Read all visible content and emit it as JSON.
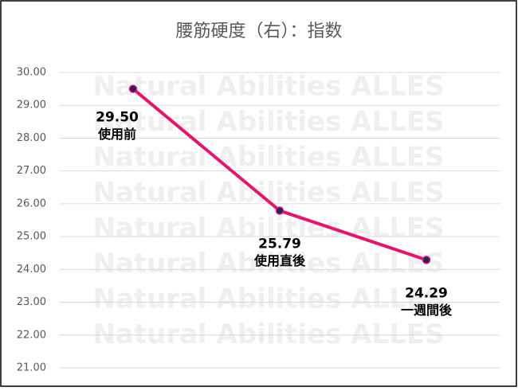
{
  "chart_data": {
    "type": "line",
    "title": "腰筋硬度（右）：指数",
    "watermark": "Natural Abilities ALLES",
    "categories": [
      "使用前",
      "使用直後",
      "一週間後"
    ],
    "series": [
      {
        "name": "腰筋硬度（右）",
        "color": "#e8136e",
        "values": [
          29.5,
          25.79,
          24.29
        ],
        "value_labels": [
          "29.50",
          "25.79",
          "24.29"
        ]
      }
    ],
    "ylim": [
      21,
      30
    ],
    "yticks": [
      {
        "value": 21,
        "label": "21.00"
      },
      {
        "value": 22,
        "label": "22.00"
      },
      {
        "value": 23,
        "label": "23.00"
      },
      {
        "value": 24,
        "label": "24.00"
      },
      {
        "value": 25,
        "label": "25.00"
      },
      {
        "value": 26,
        "label": "26.00"
      },
      {
        "value": 27,
        "label": "27.00"
      },
      {
        "value": 28,
        "label": "28.00"
      },
      {
        "value": 29,
        "label": "29.00"
      },
      {
        "value": 30,
        "label": "30.00"
      }
    ],
    "grid": true
  }
}
